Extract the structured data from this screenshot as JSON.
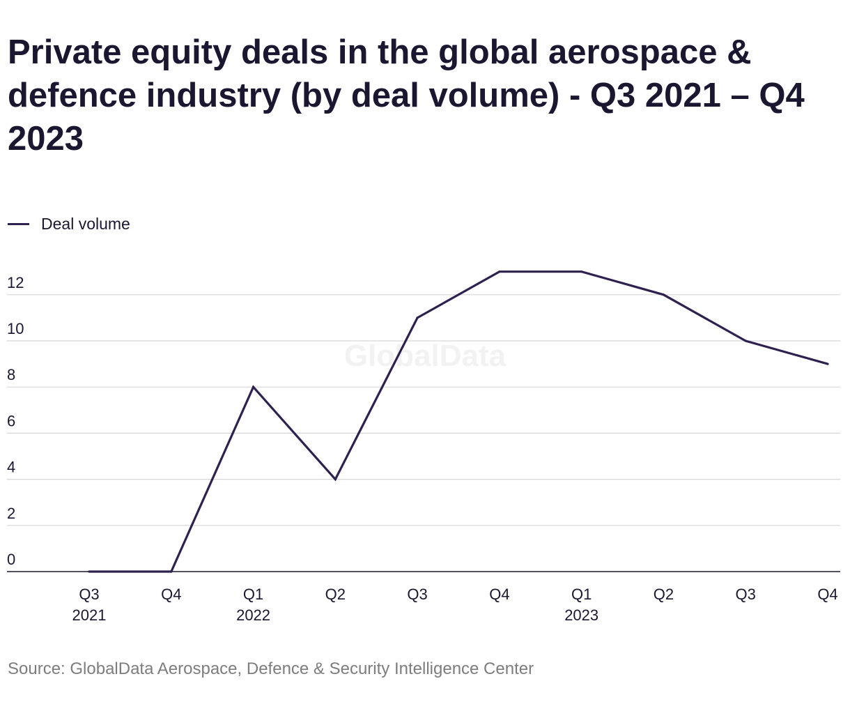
{
  "title": "Private equity deals in the global aerospace & defence industry (by deal volume) - Q3 2021 – Q4 2023",
  "legend": {
    "label": "Deal volume"
  },
  "watermark": "GlobalData",
  "source": "Source: GlobalData Aerospace, Defence & Security Intelligence Center",
  "colors": {
    "line": "#2e2150",
    "grid": "#d6d6d6",
    "axis": "#1b1730",
    "text": "#1b1730",
    "source": "#7d7d7d",
    "watermark": "#f2f2f2"
  },
  "chart_data": {
    "type": "line",
    "title": "Private equity deals in the global aerospace & defence industry (by deal volume) - Q3 2021 – Q4 2023",
    "xlabel": "",
    "ylabel": "",
    "categories": [
      "Q3 2021",
      "Q4 2021",
      "Q1 2022",
      "Q2 2022",
      "Q3 2022",
      "Q4 2022",
      "Q1 2023",
      "Q2 2023",
      "Q3 2023",
      "Q4 2023"
    ],
    "tick_labels": [
      {
        "quarter": "Q3",
        "year": "2021"
      },
      {
        "quarter": "Q4",
        "year": ""
      },
      {
        "quarter": "Q1",
        "year": "2022"
      },
      {
        "quarter": "Q2",
        "year": ""
      },
      {
        "quarter": "Q3",
        "year": ""
      },
      {
        "quarter": "Q4",
        "year": ""
      },
      {
        "quarter": "Q1",
        "year": "2023"
      },
      {
        "quarter": "Q2",
        "year": ""
      },
      {
        "quarter": "Q3",
        "year": ""
      },
      {
        "quarter": "Q4",
        "year": ""
      }
    ],
    "series": [
      {
        "name": "Deal volume",
        "values": [
          0,
          0,
          8,
          4,
          11,
          13,
          13,
          12,
          10,
          9
        ]
      }
    ],
    "yticks": [
      0,
      2,
      4,
      6,
      8,
      10,
      12
    ],
    "ylim": [
      0,
      13
    ],
    "grid": true,
    "legend_position": "top-left"
  }
}
